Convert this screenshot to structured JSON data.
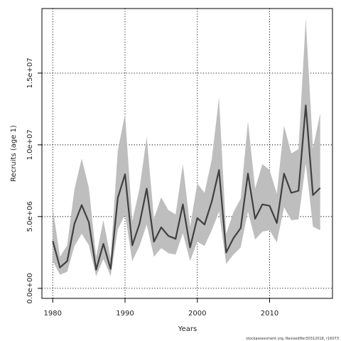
{
  "chart_data": {
    "type": "line",
    "title": "",
    "xlabel": "Years",
    "ylabel": "Recruits (age 1)",
    "xlim": [
      1978.5,
      2018.7
    ],
    "ylim": [
      -700000,
      19500000
    ],
    "x_ticks": [
      {
        "value": 1980,
        "label": "1980"
      },
      {
        "value": 1990,
        "label": "1990"
      },
      {
        "value": 2000,
        "label": "2000"
      },
      {
        "value": 2010,
        "label": "2010"
      }
    ],
    "y_ticks": [
      {
        "value": 0,
        "label": "0.0e+00"
      },
      {
        "value": 5000000,
        "label": "5.0e+06"
      },
      {
        "value": 10000000,
        "label": "1.0e+07"
      },
      {
        "value": 15000000,
        "label": "1.5e+07"
      }
    ],
    "grid": true,
    "x": [
      1980,
      1981,
      1982,
      1983,
      1984,
      1985,
      1986,
      1987,
      1988,
      1989,
      1990,
      1991,
      1992,
      1993,
      1994,
      1995,
      1996,
      1997,
      1998,
      1999,
      2000,
      2001,
      2002,
      2003,
      2004,
      2005,
      2006,
      2007,
      2008,
      2009,
      2010,
      2011,
      2012,
      2013,
      2014,
      2015,
      2016,
      2017
    ],
    "series": [
      {
        "values": [
          3300000,
          1450000,
          1900000,
          4500000,
          5800000,
          4600000,
          1300000,
          3100000,
          1350000,
          6300000,
          7950000,
          3000000,
          4500000,
          6950000,
          3250000,
          4250000,
          3650000,
          3450000,
          5850000,
          2850000,
          4900000,
          4450000,
          6050000,
          8250000,
          2500000,
          3500000,
          4200000,
          8000000,
          4850000,
          5850000,
          5750000,
          4550000,
          8000000,
          6650000,
          6800000,
          12750000,
          6500000,
          7000000
        ],
        "lower": [
          1900000,
          950000,
          1150000,
          2950000,
          3800000,
          3000000,
          850000,
          2050000,
          850000,
          4100000,
          5150000,
          1900000,
          2950000,
          4450000,
          2200000,
          2800000,
          2450000,
          2350000,
          3850000,
          1900000,
          3250000,
          2950000,
          4050000,
          5350000,
          1700000,
          2350000,
          2850000,
          5350000,
          3400000,
          3950000,
          4050000,
          3200000,
          5650000,
          4750000,
          4800000,
          8700000,
          4300000,
          4050000
        ],
        "upper": [
          5600000,
          2200000,
          3000000,
          6900000,
          9050000,
          7000000,
          2200000,
          4750000,
          2100000,
          9600000,
          12150000,
          4700000,
          6950000,
          10550000,
          4850000,
          6350000,
          5450000,
          5150000,
          8650000,
          4300000,
          7300000,
          6650000,
          9000000,
          13300000,
          3800000,
          5300000,
          6250000,
          11650000,
          6950000,
          8650000,
          8250000,
          6600000,
          11350000,
          9400000,
          9700000,
          18800000,
          9750000,
          12200000
        ]
      }
    ],
    "footer": "stockassessment.org, RevisedHer30312018, r16073",
    "colors": {
      "line": "#404040",
      "band": "#bebebe",
      "axis": "#000000",
      "grid": "#000000"
    }
  }
}
